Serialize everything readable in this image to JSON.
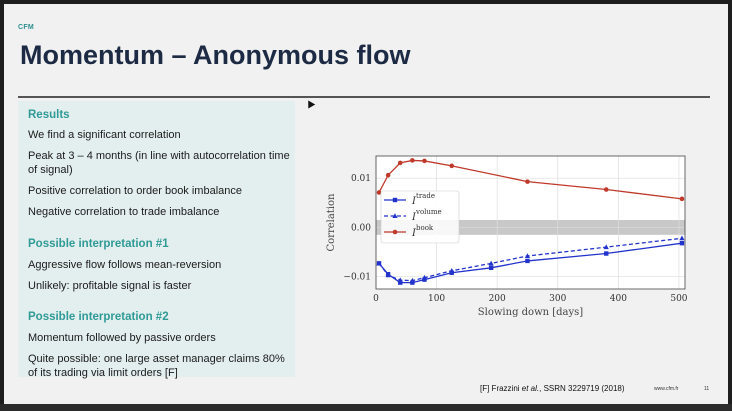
{
  "slide": {
    "brand": "CFM",
    "title": "Momentum – Anonymous flow",
    "results_heading": "Results",
    "results": [
      "We find a significant correlation",
      "Peak at 3 – 4 months (in line with autocorrelation time of signal)",
      "Positive correlation to order book imbalance",
      "Negative correlation to trade imbalance"
    ],
    "interp1_heading": "Possible interpretation #1",
    "interp1": [
      "Aggressive flow follows mean-reversion",
      "Unlikely: profitable signal is faster"
    ],
    "interp2_heading": "Possible interpretation #2",
    "interp2": [
      "Momentum followed by passive orders",
      "Quite possible: one large asset manager claims 80% of its trading via limit orders [F]"
    ],
    "footer_ref_prefix": "[F] Frazzini ",
    "footer_ref_italic": "et al.",
    "footer_ref_suffix": ", SSRN 3229719 (2018)",
    "footer_url": "www.cfm.fr",
    "page_number": "11"
  },
  "chart_data": {
    "type": "line",
    "xlabel": "Slowing down [days]",
    "ylabel": "Correlation",
    "xlim": [
      0,
      510
    ],
    "ylim": [
      -0.0125,
      0.0145
    ],
    "xticks": [
      0,
      100,
      200,
      300,
      400,
      500
    ],
    "yticks": [
      -0.01,
      0.0,
      0.01
    ],
    "ytick_labels": [
      "−0.01",
      "0.00",
      "0.01"
    ],
    "legend_position": "center-left",
    "band": [
      -0.0015,
      0.0015
    ],
    "series": [
      {
        "name": "I",
        "sup": "trade",
        "color": "#2233cc",
        "marker": "square",
        "dash": false,
        "x": [
          5,
          20,
          40,
          60,
          80,
          125,
          190,
          250,
          380,
          505
        ],
        "y": [
          -0.0073,
          -0.0095,
          -0.0112,
          -0.0112,
          -0.0106,
          -0.0092,
          -0.0082,
          -0.0068,
          -0.0053,
          -0.0032
        ]
      },
      {
        "name": "I",
        "sup": "volume",
        "color": "#2233cc",
        "marker": "triangle",
        "dash": true,
        "x": [
          5,
          20,
          40,
          60,
          80,
          125,
          190,
          250,
          380,
          505
        ],
        "y": [
          -0.0073,
          -0.0097,
          -0.0107,
          -0.0108,
          -0.0102,
          -0.0088,
          -0.0073,
          -0.0058,
          -0.004,
          -0.0022
        ]
      },
      {
        "name": "I",
        "sup": "book",
        "color": "#c0392b",
        "marker": "circle",
        "dash": false,
        "x": [
          5,
          20,
          40,
          60,
          80,
          125,
          250,
          380,
          505
        ],
        "y": [
          0.0071,
          0.0106,
          0.0131,
          0.0136,
          0.0135,
          0.0125,
          0.0093,
          0.0077,
          0.0058
        ]
      }
    ]
  }
}
